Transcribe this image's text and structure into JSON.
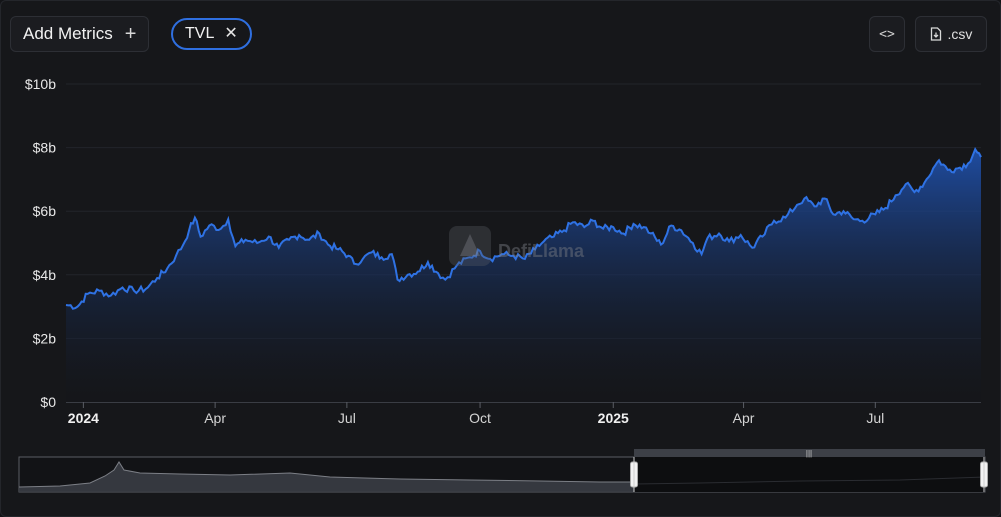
{
  "toolbar": {
    "add_metrics_label": "Add Metrics",
    "add_icon": "plus-icon",
    "metric_chip_label": "TVL",
    "remove_icon": "close-icon",
    "embed_icon": "code-icon",
    "csv_icon": "file-download-icon",
    "csv_label": ".csv"
  },
  "watermark": {
    "icon": "defillama-logo",
    "text": "DefiLlama"
  },
  "colors": {
    "line": "#2f72e4",
    "fill_top": "#1f4fa8",
    "fill_bottom": "#121317",
    "background": "#16171a"
  },
  "chart_data": {
    "type": "area",
    "title": "",
    "xlabel": "",
    "ylabel": "",
    "ylim": [
      0,
      10
    ],
    "y_unit": "$b",
    "y_ticks": [
      "$0",
      "$2b",
      "$4b",
      "$6b",
      "$8b",
      "$10b"
    ],
    "x_ticks": [
      {
        "label": "2024",
        "date": "2024-01-01",
        "bold": true
      },
      {
        "label": "Apr",
        "date": "2024-04-01",
        "bold": false
      },
      {
        "label": "Jul",
        "date": "2024-07-01",
        "bold": false
      },
      {
        "label": "Oct",
        "date": "2024-10-01",
        "bold": false
      },
      {
        "label": "2025",
        "date": "2025-01-01",
        "bold": true
      },
      {
        "label": "Apr",
        "date": "2025-04-01",
        "bold": false
      },
      {
        "label": "Jul",
        "date": "2025-07-01",
        "bold": false
      }
    ],
    "grid": true,
    "series": [
      {
        "values": [
          [
            "2023-12-20",
            3.05
          ],
          [
            "2023-12-28",
            3.0
          ],
          [
            "2024-01-04",
            3.4
          ],
          [
            "2024-01-12",
            3.5
          ],
          [
            "2024-01-20",
            3.35
          ],
          [
            "2024-01-28",
            3.6
          ],
          [
            "2024-02-05",
            3.5
          ],
          [
            "2024-02-13",
            3.55
          ],
          [
            "2024-02-21",
            3.9
          ],
          [
            "2024-02-28",
            4.2
          ],
          [
            "2024-03-05",
            4.6
          ],
          [
            "2024-03-10",
            4.95
          ],
          [
            "2024-03-14",
            5.4
          ],
          [
            "2024-03-18",
            5.8
          ],
          [
            "2024-03-22",
            5.2
          ],
          [
            "2024-03-28",
            5.55
          ],
          [
            "2024-04-05",
            5.45
          ],
          [
            "2024-04-10",
            5.75
          ],
          [
            "2024-04-15",
            4.9
          ],
          [
            "2024-04-22",
            5.1
          ],
          [
            "2024-04-30",
            5.0
          ],
          [
            "2024-05-08",
            5.2
          ],
          [
            "2024-05-15",
            4.85
          ],
          [
            "2024-05-22",
            5.1
          ],
          [
            "2024-05-29",
            5.25
          ],
          [
            "2024-06-05",
            5.1
          ],
          [
            "2024-06-12",
            5.3
          ],
          [
            "2024-06-18",
            4.95
          ],
          [
            "2024-06-25",
            4.8
          ],
          [
            "2024-07-02",
            4.6
          ],
          [
            "2024-07-06",
            4.35
          ],
          [
            "2024-07-12",
            4.5
          ],
          [
            "2024-07-18",
            4.7
          ],
          [
            "2024-07-25",
            4.55
          ],
          [
            "2024-08-01",
            4.65
          ],
          [
            "2024-08-05",
            3.85
          ],
          [
            "2024-08-12",
            4.0
          ],
          [
            "2024-08-19",
            4.1
          ],
          [
            "2024-08-26",
            4.4
          ],
          [
            "2024-09-02",
            4.05
          ],
          [
            "2024-09-07",
            3.85
          ],
          [
            "2024-09-15",
            4.3
          ],
          [
            "2024-09-24",
            4.55
          ],
          [
            "2024-10-01",
            4.75
          ],
          [
            "2024-10-08",
            4.5
          ],
          [
            "2024-10-16",
            4.65
          ],
          [
            "2024-10-24",
            4.6
          ],
          [
            "2024-11-01",
            4.5
          ],
          [
            "2024-11-08",
            4.8
          ],
          [
            "2024-11-14",
            5.05
          ],
          [
            "2024-11-21",
            5.2
          ],
          [
            "2024-11-28",
            5.4
          ],
          [
            "2024-12-04",
            5.65
          ],
          [
            "2024-12-12",
            5.5
          ],
          [
            "2024-12-18",
            5.7
          ],
          [
            "2024-12-25",
            5.45
          ],
          [
            "2025-01-01",
            5.5
          ],
          [
            "2025-01-08",
            5.3
          ],
          [
            "2025-01-15",
            5.6
          ],
          [
            "2025-01-22",
            5.5
          ],
          [
            "2025-01-27",
            5.3
          ],
          [
            "2025-02-03",
            4.95
          ],
          [
            "2025-02-10",
            5.55
          ],
          [
            "2025-02-17",
            5.4
          ],
          [
            "2025-02-25",
            5.0
          ],
          [
            "2025-03-03",
            4.65
          ],
          [
            "2025-03-07",
            5.15
          ],
          [
            "2025-03-15",
            5.3
          ],
          [
            "2025-03-22",
            5.05
          ],
          [
            "2025-03-30",
            5.25
          ],
          [
            "2025-04-07",
            4.85
          ],
          [
            "2025-04-14",
            5.2
          ],
          [
            "2025-04-22",
            5.7
          ],
          [
            "2025-04-30",
            5.8
          ],
          [
            "2025-05-08",
            6.2
          ],
          [
            "2025-05-13",
            6.4
          ],
          [
            "2025-05-20",
            6.15
          ],
          [
            "2025-05-27",
            6.4
          ],
          [
            "2025-06-02",
            5.9
          ],
          [
            "2025-06-09",
            6.0
          ],
          [
            "2025-06-16",
            5.75
          ],
          [
            "2025-06-22",
            5.7
          ],
          [
            "2025-07-01",
            5.9
          ],
          [
            "2025-07-08",
            6.1
          ],
          [
            "2025-07-15",
            6.5
          ],
          [
            "2025-07-22",
            6.85
          ],
          [
            "2025-07-28",
            6.6
          ],
          [
            "2025-08-04",
            6.9
          ],
          [
            "2025-08-10",
            7.35
          ],
          [
            "2025-08-14",
            7.6
          ],
          [
            "2025-08-20",
            7.3
          ],
          [
            "2025-08-27",
            7.35
          ],
          [
            "2025-09-03",
            7.5
          ],
          [
            "2025-09-08",
            7.95
          ],
          [
            "2025-09-12",
            7.7
          ]
        ]
      }
    ]
  }
}
